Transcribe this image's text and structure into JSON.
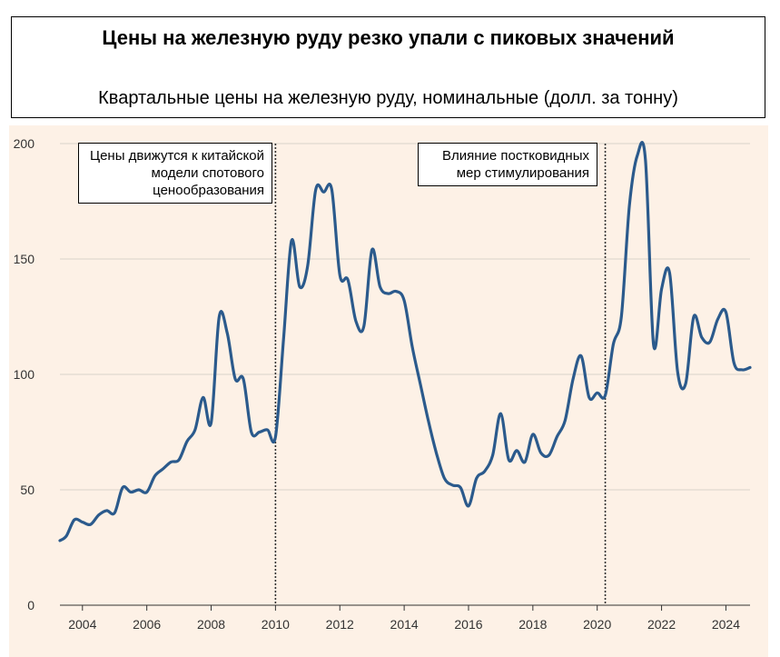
{
  "header": {
    "title": "Цены на железную руду резко упали с пиковых значений",
    "subtitle": "Квартальные цены на железную руду, номинальные (долл. за тонну)"
  },
  "colors": {
    "background": "#FDF1E6",
    "line": "#2B5A8C",
    "grid": "#D9D2CA",
    "vline": "#333333"
  },
  "chart_data": {
    "type": "line",
    "title": "Цены на железную руду резко упали с пиковых значений",
    "subtitle": "Квартальные цены на железную руду, номинальные (долл. за тонну)",
    "xlabel": "",
    "ylabel": "",
    "ylim": [
      0,
      200
    ],
    "xlim": [
      2003.3,
      2024.75
    ],
    "yticks": [
      "0",
      "50",
      "100",
      "150",
      "200"
    ],
    "xticks": [
      "2004",
      "2006",
      "2008",
      "2010",
      "2012",
      "2014",
      "2016",
      "2018",
      "2020",
      "2022",
      "2024"
    ],
    "grid": true,
    "vertical_lines": [
      2010.0,
      2020.25
    ],
    "annotations": [
      "Цены движутся к китайской модели спотового ценообразования",
      "Влияние постковидных мер стимулирования"
    ],
    "series": [
      {
        "x": [
          2003.3,
          2003.5,
          2003.75,
          2004.0,
          2004.25,
          2004.5,
          2004.75,
          2005.0,
          2005.25,
          2005.5,
          2005.75,
          2006.0,
          2006.25,
          2006.5,
          2006.75,
          2007.0,
          2007.25,
          2007.5,
          2007.75,
          2008.0,
          2008.25,
          2008.5,
          2008.75,
          2009.0,
          2009.25,
          2009.5,
          2009.75,
          2010.0,
          2010.25,
          2010.5,
          2010.75,
          2011.0,
          2011.25,
          2011.5,
          2011.75,
          2012.0,
          2012.25,
          2012.5,
          2012.75,
          2013.0,
          2013.25,
          2013.5,
          2013.75,
          2014.0,
          2014.25,
          2014.5,
          2014.75,
          2015.0,
          2015.25,
          2015.5,
          2015.75,
          2016.0,
          2016.25,
          2016.5,
          2016.75,
          2017.0,
          2017.25,
          2017.5,
          2017.75,
          2018.0,
          2018.25,
          2018.5,
          2018.75,
          2019.0,
          2019.25,
          2019.5,
          2019.75,
          2020.0,
          2020.25,
          2020.5,
          2020.75,
          2021.0,
          2021.25,
          2021.5,
          2021.75,
          2022.0,
          2022.25,
          2022.5,
          2022.75,
          2023.0,
          2023.25,
          2023.5,
          2023.75,
          2024.0,
          2024.25,
          2024.5,
          2024.75
        ],
        "values": [
          28,
          30,
          37,
          36,
          35,
          39,
          41,
          40,
          51,
          49,
          50,
          49,
          56,
          59,
          62,
          63,
          71,
          76,
          90,
          79,
          125,
          118,
          98,
          98,
          75,
          75,
          76,
          73,
          115,
          158,
          138,
          147,
          180,
          179,
          180,
          143,
          141,
          123,
          121,
          154,
          138,
          135,
          136,
          132,
          112,
          96,
          80,
          66,
          55,
          52,
          51,
          43,
          55,
          58,
          65,
          83,
          63,
          67,
          62,
          74,
          66,
          65,
          73,
          80,
          98,
          108,
          90,
          92,
          91,
          113,
          125,
          173,
          195,
          193,
          113,
          137,
          144,
          101,
          96,
          125,
          116,
          114,
          124,
          127,
          105,
          102,
          103
        ]
      }
    ]
  }
}
